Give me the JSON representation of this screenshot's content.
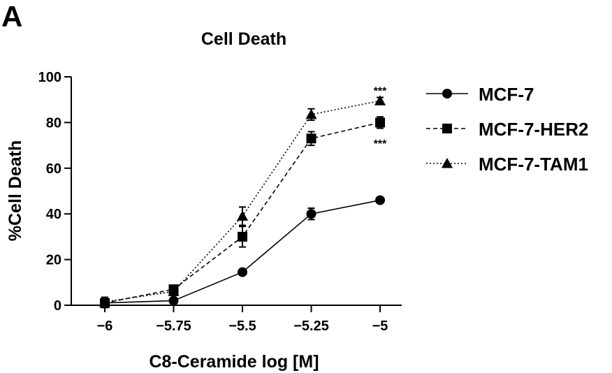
{
  "panel_label": "A",
  "chart_data": {
    "type": "line",
    "title": "Cell Death",
    "xlabel": "C8-Ceramide log [M]",
    "ylabel": "%Cell Death",
    "x": [
      -6,
      -5.75,
      -5.5,
      -5.25,
      -5
    ],
    "x_tick_labels": [
      "−6",
      "−5.75",
      "−5.5",
      "−5.25",
      "−5"
    ],
    "xlim": [
      -6.1,
      -4.9
    ],
    "ylim": [
      0,
      100
    ],
    "y_ticks": [
      0,
      20,
      40,
      60,
      80,
      100
    ],
    "grid": false,
    "legend_position": "right",
    "series": [
      {
        "name": "MCF-7",
        "marker": "circle",
        "line_style": "solid",
        "values": [
          1,
          2,
          14.5,
          40,
          46
        ],
        "errors": [
          2,
          1,
          1,
          2.5,
          1
        ]
      },
      {
        "name": "MCF-7-HER2",
        "marker": "square",
        "line_style": "dashed",
        "values": [
          1,
          7,
          30,
          73,
          80
        ],
        "errors": [
          2,
          1.5,
          4.5,
          3,
          2.5
        ]
      },
      {
        "name": "MCF-7-TAM1",
        "marker": "triangle",
        "line_style": "dotted",
        "values": [
          1.5,
          6,
          39,
          83.5,
          89.5
        ],
        "errors": [
          2,
          1,
          4,
          2.5,
          1.5
        ]
      }
    ],
    "annotations": [
      {
        "text": "***",
        "x": -5,
        "y": 94
      },
      {
        "text": "***",
        "x": -5,
        "y": 71
      }
    ],
    "color": "#000000"
  }
}
